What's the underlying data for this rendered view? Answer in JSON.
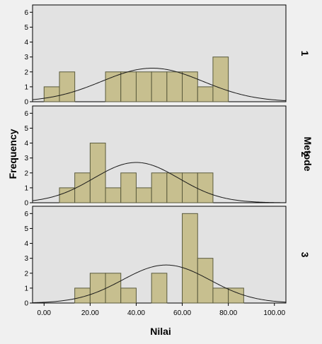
{
  "chart_data": {
    "type": "bar",
    "subtype": "paneled-histogram-with-normal-curve",
    "xlabel": "Nilai",
    "ylabel": "Frequency",
    "panel_axis_label": "Metode",
    "xlim": [
      -5,
      105
    ],
    "ylim": [
      0,
      6.3
    ],
    "x_ticks": [
      0,
      20,
      40,
      60,
      80,
      100
    ],
    "x_tick_labels": [
      "0.00",
      "20.00",
      "40.00",
      "60.00",
      "80.00",
      "100.00"
    ],
    "y_ticks": [
      0,
      1,
      2,
      3,
      4,
      5,
      6
    ],
    "bin_width": 6.67,
    "grid": false,
    "colors": {
      "bar_fill": "#c7bf8f",
      "bar_stroke": "#5a5a3c",
      "panel_bg": "#e2e2e2",
      "page_bg": "#f0f0f0",
      "curve": "#1a1a1a"
    },
    "panels": [
      {
        "label": "1",
        "bins": [
          {
            "x0": 0.0,
            "x1": 6.67,
            "count": 1
          },
          {
            "x0": 6.67,
            "x1": 13.33,
            "count": 2
          },
          {
            "x0": 26.67,
            "x1": 33.33,
            "count": 2
          },
          {
            "x0": 33.33,
            "x1": 40.0,
            "count": 2
          },
          {
            "x0": 40.0,
            "x1": 46.67,
            "count": 2
          },
          {
            "x0": 46.67,
            "x1": 53.33,
            "count": 2
          },
          {
            "x0": 53.33,
            "x1": 60.0,
            "count": 2
          },
          {
            "x0": 60.0,
            "x1": 66.67,
            "count": 2
          },
          {
            "x0": 66.67,
            "x1": 73.33,
            "count": 1
          },
          {
            "x0": 73.33,
            "x1": 80.0,
            "count": 3
          }
        ],
        "normal_curve": {
          "mean": 47,
          "sd": 22,
          "peak": 2.25
        }
      },
      {
        "label": "2",
        "bins": [
          {
            "x0": 6.67,
            "x1": 13.33,
            "count": 1
          },
          {
            "x0": 13.33,
            "x1": 20.0,
            "count": 2
          },
          {
            "x0": 20.0,
            "x1": 26.67,
            "count": 4
          },
          {
            "x0": 26.67,
            "x1": 33.33,
            "count": 1
          },
          {
            "x0": 33.33,
            "x1": 40.0,
            "count": 2
          },
          {
            "x0": 40.0,
            "x1": 46.67,
            "count": 1
          },
          {
            "x0": 46.67,
            "x1": 53.33,
            "count": 2
          },
          {
            "x0": 53.33,
            "x1": 60.0,
            "count": 2
          },
          {
            "x0": 60.0,
            "x1": 66.67,
            "count": 2
          },
          {
            "x0": 66.67,
            "x1": 73.33,
            "count": 2
          }
        ],
        "normal_curve": {
          "mean": 40,
          "sd": 18.5,
          "peak": 2.7
        }
      },
      {
        "label": "3",
        "bins": [
          {
            "x0": 13.33,
            "x1": 20.0,
            "count": 1
          },
          {
            "x0": 20.0,
            "x1": 26.67,
            "count": 2
          },
          {
            "x0": 26.67,
            "x1": 33.33,
            "count": 2
          },
          {
            "x0": 33.33,
            "x1": 40.0,
            "count": 1
          },
          {
            "x0": 46.67,
            "x1": 53.33,
            "count": 2
          },
          {
            "x0": 60.0,
            "x1": 66.67,
            "count": 6
          },
          {
            "x0": 66.67,
            "x1": 73.33,
            "count": 3
          },
          {
            "x0": 73.33,
            "x1": 80.0,
            "count": 1
          },
          {
            "x0": 80.0,
            "x1": 86.67,
            "count": 1
          }
        ],
        "normal_curve": {
          "mean": 53,
          "sd": 19,
          "peak": 2.55
        }
      }
    ]
  }
}
